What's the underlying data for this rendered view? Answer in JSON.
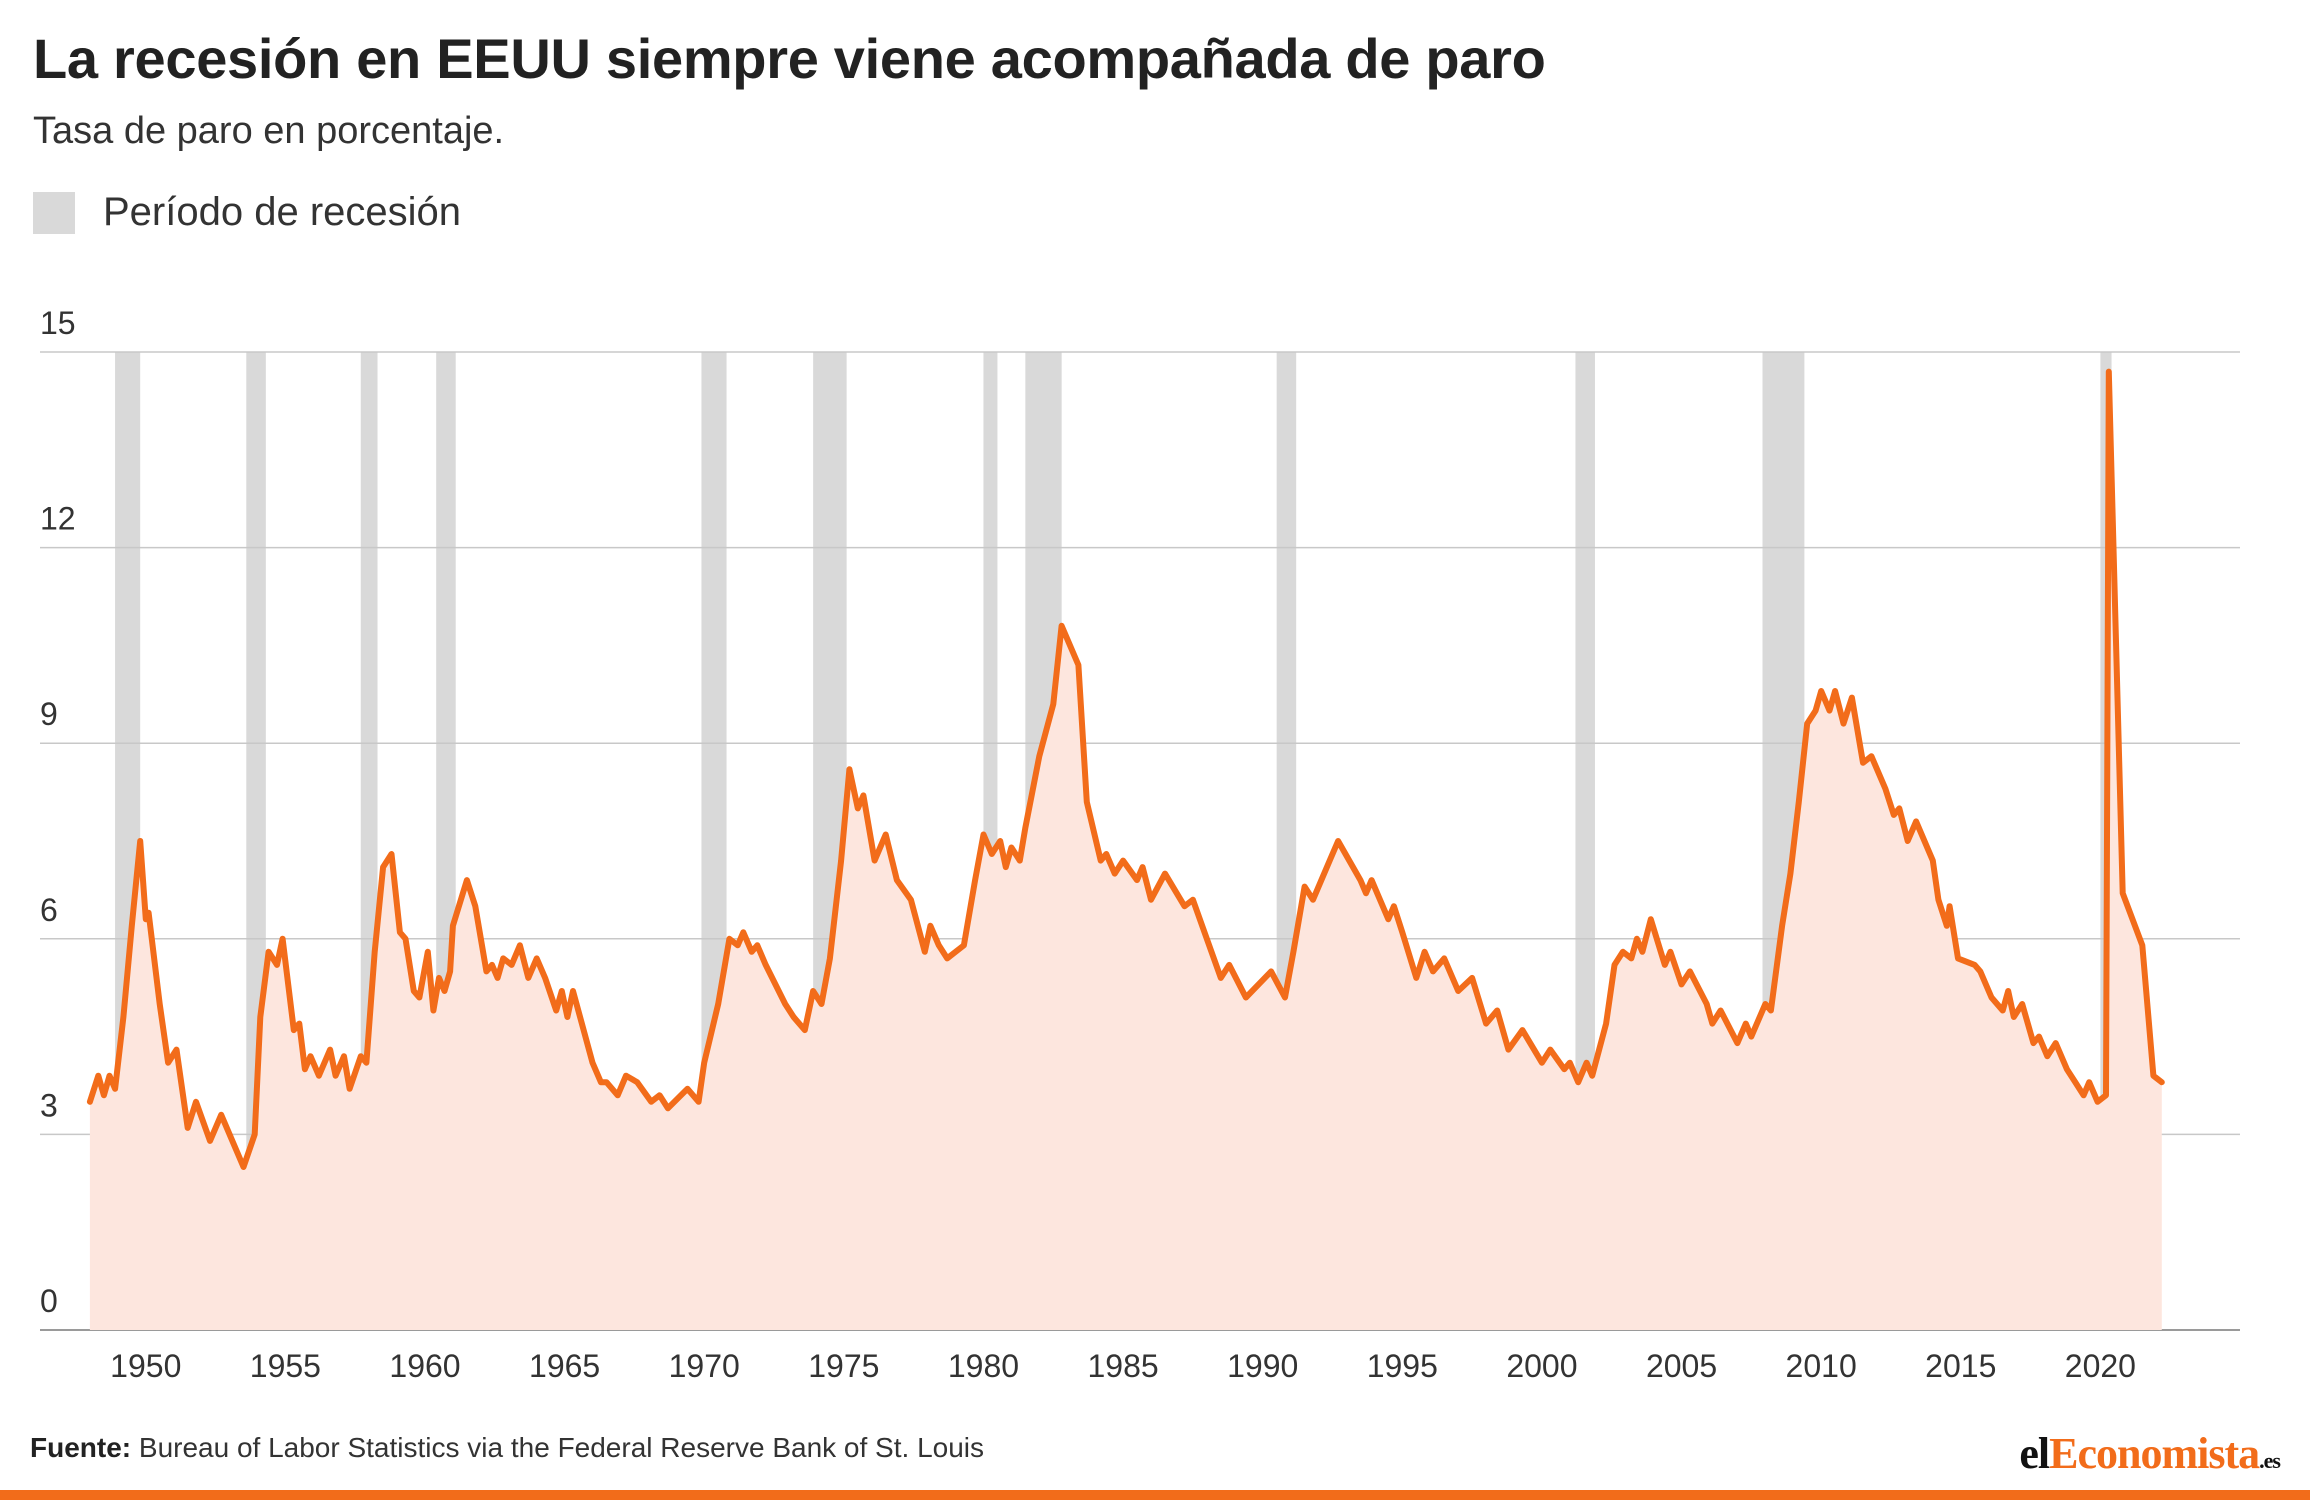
{
  "title": "La recesión en EEUU siempre viene acompañada de paro",
  "subtitle": "Tasa de paro en porcentaje.",
  "legend": {
    "recession_label": "Período de recesión",
    "recession_color": "#d9d9d9"
  },
  "source": {
    "label": "Fuente:",
    "text": " Bureau of Labor Statistics via the Federal Reserve Bank of St. Louis"
  },
  "brand": {
    "prefix": "el",
    "accent": "Economista",
    "suffix": ".es"
  },
  "colors": {
    "line": "#f26c1a",
    "area": "#fde6de",
    "grid": "#c8c8c8",
    "axis_text": "#333333",
    "brand": "#f26c1a"
  },
  "chart_data": {
    "type": "area",
    "title": "La recesión en EEUU siempre viene acompañada de paro",
    "subtitle": "Tasa de paro en porcentaje.",
    "ylim": [
      0,
      15
    ],
    "xlim": [
      1947,
      2025
    ],
    "yticks": [
      0,
      3,
      6,
      9,
      12,
      15
    ],
    "xticks": [
      1950,
      1955,
      1960,
      1965,
      1970,
      1975,
      1980,
      1985,
      1990,
      1995,
      2000,
      2005,
      2010,
      2015,
      2020
    ],
    "grid": "horizontal",
    "recessions": [
      [
        1948.9,
        1949.8
      ],
      [
        1953.6,
        1954.3
      ],
      [
        1957.7,
        1958.3
      ],
      [
        1960.4,
        1961.1
      ],
      [
        1969.9,
        1970.8
      ],
      [
        1973.9,
        1975.1
      ],
      [
        1980.0,
        1980.5
      ],
      [
        1981.5,
        1982.8
      ],
      [
        1990.5,
        1991.2
      ],
      [
        2001.2,
        2001.9
      ],
      [
        2007.9,
        2009.4
      ],
      [
        2020.0,
        2020.4
      ]
    ],
    "series": [
      {
        "values": [
          [
            1948.0,
            3.5
          ],
          [
            1948.3,
            3.9
          ],
          [
            1948.5,
            3.6
          ],
          [
            1948.7,
            3.9
          ],
          [
            1948.9,
            3.7
          ],
          [
            1949.2,
            4.8
          ],
          [
            1949.5,
            6.2
          ],
          [
            1949.8,
            7.5
          ],
          [
            1950.0,
            6.3
          ],
          [
            1950.1,
            6.4
          ],
          [
            1950.5,
            5.0
          ],
          [
            1950.8,
            4.1
          ],
          [
            1951.1,
            4.3
          ],
          [
            1951.5,
            3.1
          ],
          [
            1951.8,
            3.5
          ],
          [
            1952.3,
            2.9
          ],
          [
            1952.7,
            3.3
          ],
          [
            1953.5,
            2.5
          ],
          [
            1953.9,
            3.0
          ],
          [
            1954.1,
            4.8
          ],
          [
            1954.4,
            5.8
          ],
          [
            1954.7,
            5.6
          ],
          [
            1954.9,
            6.0
          ],
          [
            1955.3,
            4.6
          ],
          [
            1955.5,
            4.7
          ],
          [
            1955.7,
            4.0
          ],
          [
            1955.9,
            4.2
          ],
          [
            1956.2,
            3.9
          ],
          [
            1956.6,
            4.3
          ],
          [
            1956.8,
            3.9
          ],
          [
            1957.1,
            4.2
          ],
          [
            1957.3,
            3.7
          ],
          [
            1957.7,
            4.2
          ],
          [
            1957.9,
            4.1
          ],
          [
            1958.2,
            5.8
          ],
          [
            1958.5,
            7.1
          ],
          [
            1958.8,
            7.3
          ],
          [
            1959.1,
            6.1
          ],
          [
            1959.3,
            6.0
          ],
          [
            1959.6,
            5.2
          ],
          [
            1959.8,
            5.1
          ],
          [
            1960.1,
            5.8
          ],
          [
            1960.3,
            4.9
          ],
          [
            1960.5,
            5.4
          ],
          [
            1960.7,
            5.2
          ],
          [
            1960.9,
            5.5
          ],
          [
            1961.0,
            6.2
          ],
          [
            1961.5,
            6.9
          ],
          [
            1961.8,
            6.5
          ],
          [
            1962.2,
            5.5
          ],
          [
            1962.4,
            5.6
          ],
          [
            1962.6,
            5.4
          ],
          [
            1962.8,
            5.7
          ],
          [
            1963.1,
            5.6
          ],
          [
            1963.4,
            5.9
          ],
          [
            1963.7,
            5.4
          ],
          [
            1964.0,
            5.7
          ],
          [
            1964.3,
            5.4
          ],
          [
            1964.7,
            4.9
          ],
          [
            1964.9,
            5.2
          ],
          [
            1965.1,
            4.8
          ],
          [
            1965.3,
            5.2
          ],
          [
            1966.0,
            4.1
          ],
          [
            1966.3,
            3.8
          ],
          [
            1966.5,
            3.8
          ],
          [
            1966.9,
            3.6
          ],
          [
            1967.2,
            3.9
          ],
          [
            1967.6,
            3.8
          ],
          [
            1968.1,
            3.5
          ],
          [
            1968.4,
            3.6
          ],
          [
            1968.7,
            3.4
          ],
          [
            1969.4,
            3.7
          ],
          [
            1969.8,
            3.5
          ],
          [
            1970.0,
            4.1
          ],
          [
            1970.5,
            5.0
          ],
          [
            1970.9,
            6.0
          ],
          [
            1971.2,
            5.9
          ],
          [
            1971.4,
            6.1
          ],
          [
            1971.7,
            5.8
          ],
          [
            1971.9,
            5.9
          ],
          [
            1972.2,
            5.6
          ],
          [
            1972.9,
            5.0
          ],
          [
            1973.2,
            4.8
          ],
          [
            1973.6,
            4.6
          ],
          [
            1973.9,
            5.2
          ],
          [
            1974.2,
            5.0
          ],
          [
            1974.5,
            5.7
          ],
          [
            1974.9,
            7.2
          ],
          [
            1975.2,
            8.6
          ],
          [
            1975.5,
            8.0
          ],
          [
            1975.7,
            8.2
          ],
          [
            1976.1,
            7.2
          ],
          [
            1976.5,
            7.6
          ],
          [
            1976.9,
            6.9
          ],
          [
            1977.4,
            6.6
          ],
          [
            1977.9,
            5.8
          ],
          [
            1978.1,
            6.2
          ],
          [
            1978.4,
            5.9
          ],
          [
            1978.7,
            5.7
          ],
          [
            1979.3,
            5.9
          ],
          [
            1979.7,
            6.9
          ],
          [
            1980.0,
            7.6
          ],
          [
            1980.3,
            7.3
          ],
          [
            1980.6,
            7.5
          ],
          [
            1980.8,
            7.1
          ],
          [
            1981.0,
            7.4
          ],
          [
            1981.3,
            7.2
          ],
          [
            1981.5,
            7.7
          ],
          [
            1982.0,
            8.8
          ],
          [
            1982.5,
            9.6
          ],
          [
            1982.8,
            10.8
          ],
          [
            1983.4,
            10.2
          ],
          [
            1983.7,
            8.1
          ],
          [
            1984.2,
            7.2
          ],
          [
            1984.4,
            7.3
          ],
          [
            1984.7,
            7.0
          ],
          [
            1985.0,
            7.2
          ],
          [
            1985.5,
            6.9
          ],
          [
            1985.7,
            7.1
          ],
          [
            1986.0,
            6.6
          ],
          [
            1986.5,
            7.0
          ],
          [
            1987.2,
            6.5
          ],
          [
            1987.5,
            6.6
          ],
          [
            1988.0,
            6.0
          ],
          [
            1988.5,
            5.4
          ],
          [
            1988.8,
            5.6
          ],
          [
            1989.4,
            5.1
          ],
          [
            1990.3,
            5.5
          ],
          [
            1990.8,
            5.1
          ],
          [
            1991.1,
            5.8
          ],
          [
            1991.5,
            6.8
          ],
          [
            1991.8,
            6.6
          ],
          [
            1992.4,
            7.2
          ],
          [
            1992.7,
            7.5
          ],
          [
            1993.5,
            6.9
          ],
          [
            1993.7,
            6.7
          ],
          [
            1993.9,
            6.9
          ],
          [
            1994.5,
            6.3
          ],
          [
            1994.7,
            6.5
          ],
          [
            1995.0,
            6.1
          ],
          [
            1995.5,
            5.4
          ],
          [
            1995.8,
            5.8
          ],
          [
            1996.1,
            5.5
          ],
          [
            1996.5,
            5.7
          ],
          [
            1997.0,
            5.2
          ],
          [
            1997.5,
            5.4
          ],
          [
            1998.0,
            4.7
          ],
          [
            1998.4,
            4.9
          ],
          [
            1998.8,
            4.3
          ],
          [
            1999.3,
            4.6
          ],
          [
            2000.0,
            4.1
          ],
          [
            2000.3,
            4.3
          ],
          [
            2000.8,
            4.0
          ],
          [
            2001.0,
            4.1
          ],
          [
            2001.3,
            3.8
          ],
          [
            2001.6,
            4.1
          ],
          [
            2001.8,
            3.9
          ],
          [
            2002.3,
            4.7
          ],
          [
            2002.6,
            5.6
          ],
          [
            2002.9,
            5.8
          ],
          [
            2003.2,
            5.7
          ],
          [
            2003.4,
            6.0
          ],
          [
            2003.6,
            5.8
          ],
          [
            2003.9,
            6.3
          ],
          [
            2004.4,
            5.6
          ],
          [
            2004.6,
            5.8
          ],
          [
            2005.0,
            5.3
          ],
          [
            2005.3,
            5.5
          ],
          [
            2005.9,
            5.0
          ],
          [
            2006.1,
            4.7
          ],
          [
            2006.4,
            4.9
          ],
          [
            2007.0,
            4.4
          ],
          [
            2007.3,
            4.7
          ],
          [
            2007.5,
            4.5
          ],
          [
            2008.0,
            5.0
          ],
          [
            2008.2,
            4.9
          ],
          [
            2008.6,
            6.2
          ],
          [
            2008.9,
            7.0
          ],
          [
            2009.2,
            8.1
          ],
          [
            2009.5,
            9.3
          ],
          [
            2009.8,
            9.5
          ],
          [
            2010.0,
            9.8
          ],
          [
            2010.3,
            9.5
          ],
          [
            2010.5,
            9.8
          ],
          [
            2010.8,
            9.3
          ],
          [
            2011.1,
            9.7
          ],
          [
            2011.5,
            8.7
          ],
          [
            2011.8,
            8.8
          ],
          [
            2012.3,
            8.3
          ],
          [
            2012.6,
            7.9
          ],
          [
            2012.8,
            8.0
          ],
          [
            2013.1,
            7.5
          ],
          [
            2013.4,
            7.8
          ],
          [
            2014.0,
            7.2
          ],
          [
            2014.2,
            6.6
          ],
          [
            2014.5,
            6.2
          ],
          [
            2014.6,
            6.5
          ],
          [
            2014.9,
            5.7
          ],
          [
            2015.5,
            5.6
          ],
          [
            2015.7,
            5.5
          ],
          [
            2016.1,
            5.1
          ],
          [
            2016.5,
            4.9
          ],
          [
            2016.7,
            5.2
          ],
          [
            2016.9,
            4.8
          ],
          [
            2017.2,
            5.0
          ],
          [
            2017.6,
            4.4
          ],
          [
            2017.8,
            4.5
          ],
          [
            2018.1,
            4.2
          ],
          [
            2018.4,
            4.4
          ],
          [
            2018.8,
            4.0
          ],
          [
            2019.1,
            3.8
          ],
          [
            2019.4,
            3.6
          ],
          [
            2019.6,
            3.8
          ],
          [
            2019.9,
            3.5
          ],
          [
            2020.2,
            3.6
          ],
          [
            2020.3,
            14.7
          ],
          [
            2020.8,
            6.7
          ],
          [
            2021.5,
            5.9
          ],
          [
            2021.9,
            3.9
          ],
          [
            2022.2,
            3.8
          ]
        ]
      }
    ]
  }
}
